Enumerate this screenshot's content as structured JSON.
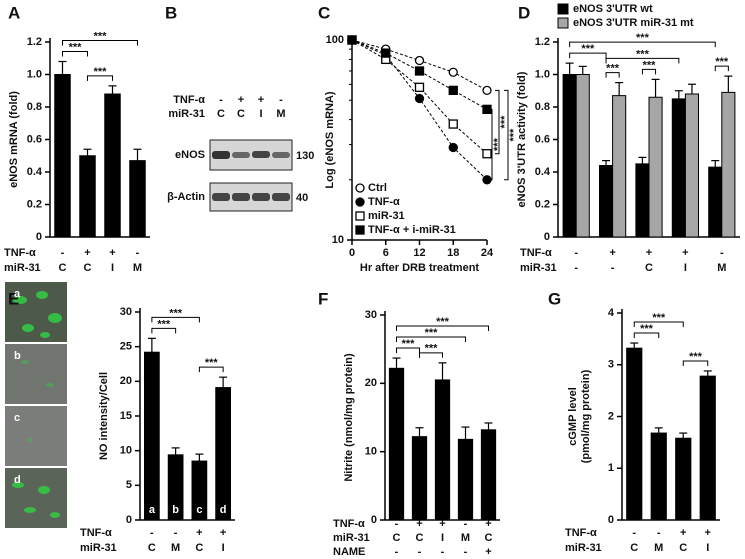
{
  "chart_data": [
    {
      "panel": "A",
      "type": "bar",
      "ylabel": "eNOS mRNA (fold)",
      "ylim": [
        0,
        1.2
      ],
      "yticks": [
        0,
        0.2,
        0.4,
        0.6,
        0.8,
        {
          "value": 1,
          "label": "1.0"
        },
        1.2
      ],
      "values": [
        1.0,
        0.5,
        0.88,
        0.47
      ],
      "errors": [
        0.08,
        0.04,
        0.05,
        0.07
      ],
      "color": "#000000",
      "conditions": [
        {
          "name": "TNF-α",
          "labels": [
            "-",
            "+",
            "+",
            "-"
          ]
        },
        {
          "name": "miR-31",
          "labels": [
            "C",
            "C",
            "I",
            "M"
          ]
        }
      ],
      "comparisons": [
        {
          "label": "***",
          "bars": [
            0,
            1
          ]
        },
        {
          "label": "***",
          "bars": [
            1,
            2
          ]
        },
        {
          "label": "***",
          "bars": [
            0,
            3
          ]
        }
      ]
    },
    {
      "panel": "C",
      "type": "line",
      "ylabel": "Log (eNOS mRNA)",
      "xlabel": "Hr after DRB treatment",
      "log_y": true,
      "ylim": [
        10,
        100
      ],
      "yticks": [
        10,
        100
      ],
      "xlim": [
        0,
        24
      ],
      "xticks": [
        0,
        6,
        12,
        18,
        24
      ],
      "x": [
        0,
        6,
        12,
        18,
        24
      ],
      "series": [
        {
          "name": "Ctrl",
          "marker": "circle",
          "filled": false,
          "values": [
            100,
            90,
            79,
            69,
            56
          ]
        },
        {
          "name": "TNF-α",
          "marker": "circle",
          "filled": true,
          "values": [
            100,
            84,
            51,
            29,
            20
          ]
        },
        {
          "name": "miR-31",
          "marker": "square",
          "filled": false,
          "values": [
            100,
            80,
            58,
            38,
            27
          ]
        },
        {
          "name": "TNF-α + i-miR-31",
          "marker": "square",
          "filled": true,
          "values": [
            100,
            86,
            70,
            56,
            45
          ]
        }
      ],
      "annotations": [
        "***",
        "***",
        "***"
      ]
    },
    {
      "panel": "D",
      "type": "grouped_bar",
      "ylabel": "eNOS 3'UTR activity (fold)",
      "ylim": [
        0,
        1.2
      ],
      "yticks": [
        0,
        0.2,
        0.4,
        0.6,
        0.8,
        {
          "value": 1,
          "label": "1.0"
        },
        1.2
      ],
      "series": [
        {
          "name": "eNOS 3'UTR wt",
          "color": "#000000",
          "values": [
            1.0,
            0.44,
            0.45,
            0.85,
            0.43
          ],
          "errors": [
            0.07,
            0.03,
            0.04,
            0.05,
            0.04
          ]
        },
        {
          "name": "eNOS 3'UTR miR-31 mt",
          "color": "#a6a6a6",
          "values": [
            1.0,
            0.87,
            0.86,
            0.88,
            0.89
          ],
          "errors": [
            0.05,
            0.08,
            0.11,
            0.06,
            0.1
          ]
        }
      ],
      "conditions": [
        {
          "name": "TNF-α",
          "labels": [
            "-",
            "+",
            "+",
            "+",
            "-"
          ]
        },
        {
          "name": "miR-31",
          "labels": [
            "-",
            "-",
            "C",
            "I",
            "M"
          ]
        }
      ],
      "comparisons": [
        {
          "label": "***",
          "bars": [
            [
              0,
              0
            ],
            [
              1,
              0
            ]
          ]
        },
        {
          "label": "***",
          "bars": [
            [
              1,
              0
            ],
            [
              1,
              1
            ]
          ]
        },
        {
          "label": "***",
          "bars": [
            [
              2,
              0
            ],
            [
              2,
              1
            ]
          ]
        },
        {
          "label": "***",
          "bars": [
            [
              1,
              0
            ],
            [
              3,
              0
            ]
          ]
        },
        {
          "label": "***",
          "bars": [
            [
              4,
              0
            ],
            [
              4,
              1
            ]
          ]
        },
        {
          "label": "***",
          "bars": [
            [
              0,
              0
            ],
            [
              4,
              0
            ]
          ]
        }
      ]
    },
    {
      "panel": "E",
      "type": "bar",
      "ylabel": "NO intensity/Cell",
      "ylim": [
        0,
        30
      ],
      "yticks": [
        0,
        5,
        10,
        15,
        20,
        25,
        30
      ],
      "values": [
        24.2,
        9.4,
        8.5,
        19.1
      ],
      "errors": [
        2.0,
        1.0,
        1.0,
        1.5
      ],
      "color": "#000000",
      "bar_labels": [
        "a",
        "b",
        "c",
        "d"
      ],
      "image_labels": [
        "a",
        "b",
        "c",
        "d"
      ],
      "conditions": [
        {
          "name": "TNF-α",
          "labels": [
            "-",
            "-",
            "+",
            "+"
          ]
        },
        {
          "name": "miR-31",
          "labels": [
            "C",
            "M",
            "C",
            "I"
          ]
        }
      ],
      "comparisons": [
        {
          "label": "***",
          "bars": [
            0,
            1
          ]
        },
        {
          "label": "***",
          "bars": [
            0,
            2
          ]
        },
        {
          "label": "***",
          "bars": [
            2,
            3
          ]
        }
      ]
    },
    {
      "panel": "F",
      "type": "bar",
      "ylabel": "Nitrite (nmol/mg protein)",
      "ylim": [
        0,
        30
      ],
      "yticks": [
        0,
        10,
        20,
        30
      ],
      "values": [
        22.2,
        12.2,
        20.5,
        11.8,
        13.2
      ],
      "errors": [
        1.5,
        1.3,
        2.5,
        1.8,
        1.0
      ],
      "color": "#000000",
      "conditions": [
        {
          "name": "TNF-α",
          "labels": [
            "-",
            "+",
            "+",
            "-",
            "+"
          ]
        },
        {
          "name": "miR-31",
          "labels": [
            "C",
            "C",
            "I",
            "M",
            "C"
          ]
        },
        {
          "name": "NAME",
          "labels": [
            "-",
            "-",
            "-",
            "-",
            "+"
          ]
        }
      ],
      "comparisons": [
        {
          "label": "***",
          "bars": [
            0,
            1
          ]
        },
        {
          "label": "***",
          "bars": [
            1,
            2
          ]
        },
        {
          "label": "***",
          "bars": [
            0,
            3
          ]
        },
        {
          "label": "***",
          "bars": [
            0,
            4
          ]
        }
      ]
    },
    {
      "panel": "G",
      "type": "bar",
      "ylabel": [
        "cGMP level",
        "(pmol/mg protein)"
      ],
      "ylim": [
        0,
        4
      ],
      "yticks": [
        0,
        1,
        2,
        3,
        4
      ],
      "values": [
        3.32,
        1.68,
        1.58,
        2.78
      ],
      "errors": [
        0.1,
        0.1,
        0.1,
        0.1
      ],
      "color": "#000000",
      "conditions": [
        {
          "name": "TNF-α",
          "labels": [
            "-",
            "-",
            "+",
            "+"
          ]
        },
        {
          "name": "miR-31",
          "labels": [
            "C",
            "M",
            "C",
            "I"
          ]
        }
      ],
      "comparisons": [
        {
          "label": "***",
          "bars": [
            0,
            1
          ]
        },
        {
          "label": "***",
          "bars": [
            0,
            2
          ]
        },
        {
          "label": "***",
          "bars": [
            2,
            3
          ]
        }
      ]
    }
  ],
  "blot": {
    "panel": "B",
    "rows": [
      {
        "name": "TNF-α",
        "labels": [
          "-",
          "+",
          "+",
          "-"
        ]
      },
      {
        "name": "miR-31",
        "labels": [
          "C",
          "C",
          "I",
          "M"
        ]
      }
    ],
    "bands": [
      "eNOS",
      "β-Actin"
    ],
    "markers": [
      "130",
      "40"
    ]
  }
}
